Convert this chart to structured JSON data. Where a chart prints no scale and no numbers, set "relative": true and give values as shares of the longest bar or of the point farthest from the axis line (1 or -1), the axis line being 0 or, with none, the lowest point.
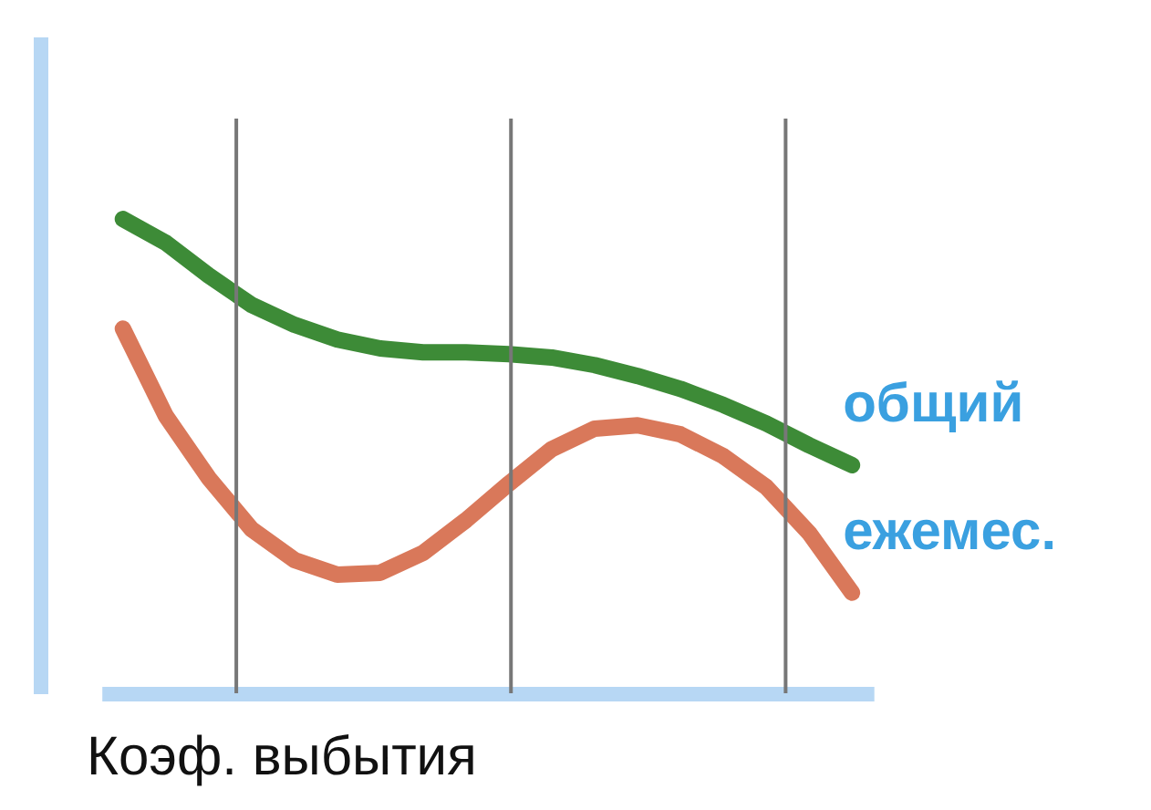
{
  "chart_data": {
    "type": "line",
    "relative": true,
    "xlabel": "Коэф. выбытия",
    "line_style": "solid",
    "categories": [
      null,
      null,
      null,
      null,
      null,
      null,
      null,
      null,
      null,
      null,
      null,
      null,
      null,
      null,
      null,
      null,
      null,
      null
    ],
    "series": [
      {
        "name": "общий",
        "color": "#3d8b37",
        "values": [
          1,
          0.95,
          0.881,
          0.819,
          0.777,
          0.746,
          0.727,
          0.719,
          0.719,
          0.715,
          0.708,
          0.692,
          0.669,
          0.642,
          0.608,
          0.569,
          0.523,
          0.481
        ]
      },
      {
        "name": "ежемес.",
        "color": "#d9785a",
        "values": [
          0.769,
          0.585,
          0.454,
          0.346,
          0.281,
          0.25,
          0.254,
          0.296,
          0.365,
          0.442,
          0.515,
          0.558,
          0.565,
          0.546,
          0.5,
          0.435,
          0.338,
          0.212
        ]
      }
    ]
  }
}
